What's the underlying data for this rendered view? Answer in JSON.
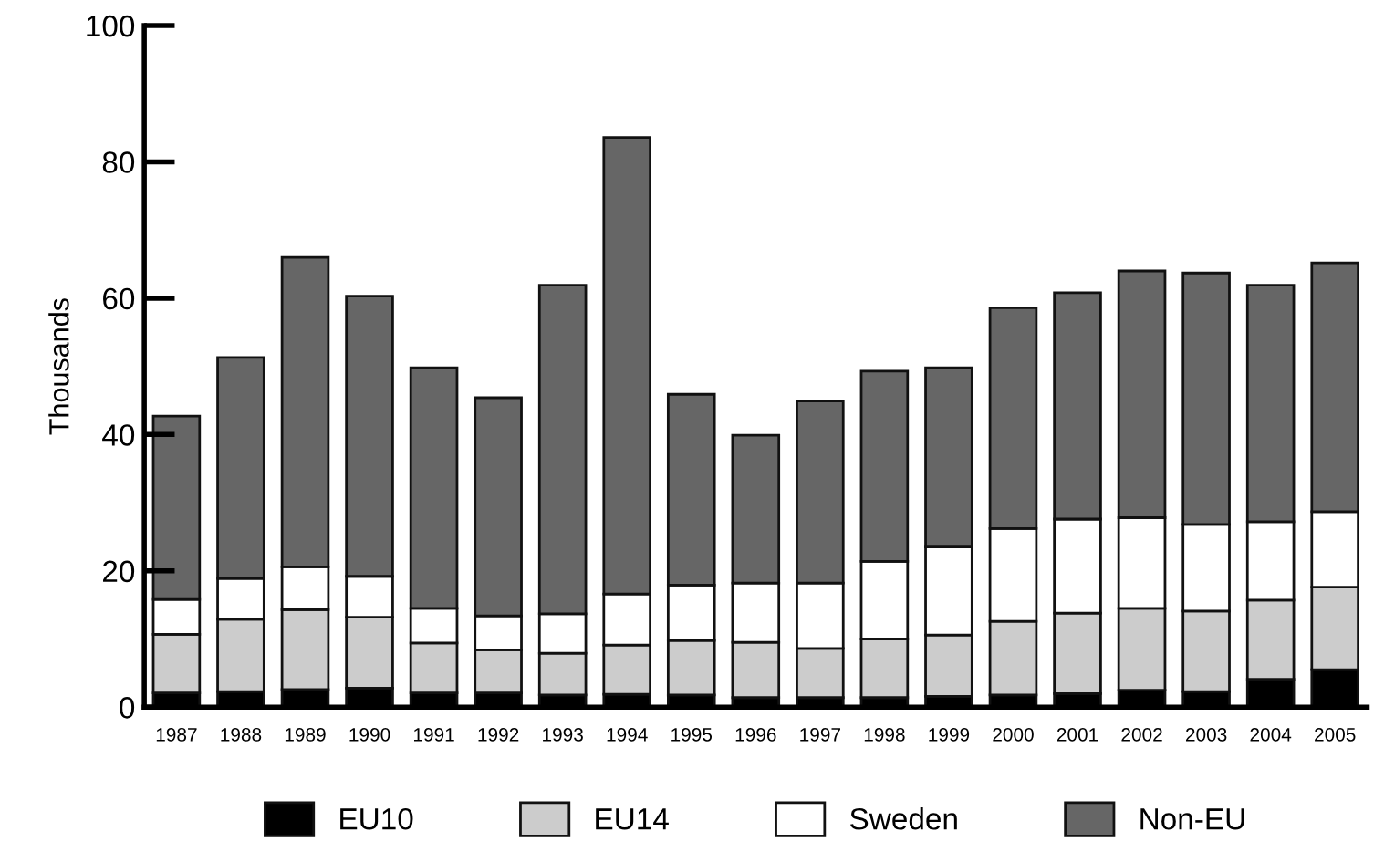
{
  "chart_data": {
    "type": "bar",
    "stacked": true,
    "ylabel": "Thousands",
    "categories": [
      "1987",
      "1988",
      "1989",
      "1990",
      "1991",
      "1992",
      "1993",
      "1994",
      "1995",
      "1996",
      "1997",
      "1998",
      "1999",
      "2000",
      "2001",
      "2002",
      "2003",
      "2004",
      "2005"
    ],
    "series": [
      {
        "name": "EU10",
        "color": "#000000",
        "values": [
          2.1,
          2.3,
          2.6,
          2.8,
          2.1,
          2.1,
          1.8,
          1.9,
          1.8,
          1.4,
          1.4,
          1.4,
          1.6,
          1.8,
          2.0,
          2.5,
          2.3,
          4.1,
          5.5
        ]
      },
      {
        "name": "EU14",
        "color": "#cccccc",
        "values": [
          8.6,
          10.6,
          11.7,
          10.4,
          7.3,
          6.3,
          6.1,
          7.2,
          8.0,
          8.1,
          7.2,
          8.6,
          9.0,
          10.8,
          11.8,
          12.0,
          11.8,
          11.6,
          12.1
        ]
      },
      {
        "name": "Sweden",
        "color": "#ffffff",
        "values": [
          5.1,
          6.0,
          6.3,
          6.0,
          5.1,
          5.0,
          5.8,
          7.5,
          8.1,
          8.7,
          9.6,
          11.4,
          12.9,
          13.6,
          13.8,
          13.3,
          12.7,
          11.5,
          11.1
        ]
      },
      {
        "name": "Non-EU",
        "color": "#666666",
        "values": [
          26.9,
          32.4,
          45.4,
          41.1,
          35.3,
          32.0,
          48.2,
          67.0,
          28.0,
          21.7,
          26.7,
          27.9,
          26.3,
          32.4,
          33.2,
          36.2,
          36.9,
          34.7,
          36.5
        ]
      }
    ],
    "ylim": [
      0,
      100
    ],
    "yticks": [
      0,
      20,
      40,
      60,
      80,
      100
    ],
    "grid": false,
    "legend": "bottom"
  }
}
